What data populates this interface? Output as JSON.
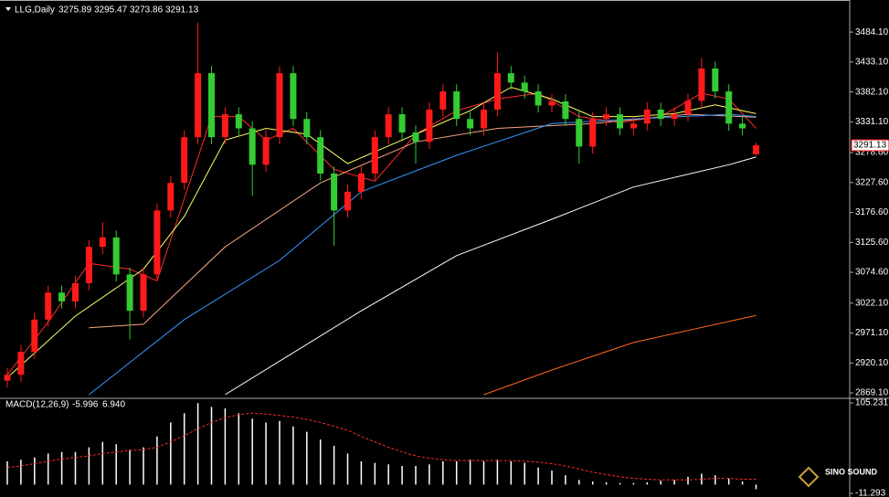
{
  "chart_data": [
    {
      "type": "candlestick",
      "title": "LLG,Daily",
      "open": [
        2890,
        2900,
        2939,
        2994,
        3040,
        3025,
        3056,
        3118,
        3134,
        3071,
        3009,
        3071,
        3180,
        3227,
        3305,
        3414,
        3305,
        3344,
        3320,
        3258,
        3305,
        3414,
        3336,
        3305,
        3243,
        3180,
        3212,
        3243,
        3305,
        3344,
        3313,
        3297,
        3352,
        3383,
        3336,
        3320,
        3352,
        3414,
        3398,
        3383,
        3359,
        3366,
        3336,
        3289,
        3336,
        3344,
        3320,
        3328,
        3352,
        3336,
        3344,
        3367,
        3422,
        3383,
        3328,
        3275.89
      ],
      "high": [
        2912,
        2951,
        3006,
        3052,
        3052,
        3068,
        3130,
        3160,
        3146,
        3083,
        3083,
        3192,
        3239,
        3317,
        3500,
        3426,
        3356,
        3356,
        3332,
        3317,
        3426,
        3426,
        3348,
        3317,
        3255,
        3224,
        3255,
        3317,
        3356,
        3356,
        3325,
        3364,
        3395,
        3395,
        3348,
        3364,
        3450,
        3426,
        3410,
        3395,
        3378,
        3378,
        3348,
        3348,
        3356,
        3356,
        3340,
        3364,
        3364,
        3356,
        3379,
        3440,
        3434,
        3395,
        3340,
        3295.47
      ],
      "low": [
        2878,
        2888,
        2927,
        2982,
        3013,
        3013,
        3044,
        3106,
        3059,
        2960,
        2997,
        3059,
        3168,
        3215,
        3293,
        3293,
        3293,
        3308,
        3205,
        3246,
        3293,
        3324,
        3293,
        3231,
        3120,
        3168,
        3200,
        3231,
        3293,
        3301,
        3260,
        3285,
        3340,
        3324,
        3308,
        3308,
        3340,
        3386,
        3371,
        3347,
        3347,
        3324,
        3260,
        3277,
        3324,
        3308,
        3308,
        3316,
        3324,
        3324,
        3332,
        3355,
        3371,
        3316,
        3308,
        3273.86
      ],
      "close": [
        2900,
        2939,
        2994,
        3040,
        3025,
        3056,
        3118,
        3134,
        3071,
        3009,
        3071,
        3180,
        3227,
        3305,
        3414,
        3305,
        3344,
        3320,
        3258,
        3305,
        3414,
        3336,
        3305,
        3243,
        3180,
        3212,
        3243,
        3305,
        3344,
        3313,
        3297,
        3352,
        3383,
        3336,
        3320,
        3352,
        3414,
        3398,
        3383,
        3359,
        3366,
        3336,
        3289,
        3336,
        3344,
        3320,
        3328,
        3352,
        3336,
        3344,
        3367,
        3422,
        3383,
        3328,
        3320,
        3291.13
      ],
      "up_color": "#ff1a1a",
      "down_color": "#33cc33",
      "series": [
        {
          "color": "#ff2a2a",
          "x": [
            0,
            3,
            6,
            9,
            11,
            13,
            15,
            17,
            19,
            21,
            24,
            27,
            30,
            33,
            36,
            39,
            42,
            45,
            48,
            51,
            53,
            55
          ],
          "values": [
            2900,
            2990,
            3090,
            3080,
            3060,
            3200,
            3340,
            3340,
            3300,
            3320,
            3250,
            3230,
            3310,
            3350,
            3370,
            3380,
            3340,
            3330,
            3340,
            3380,
            3370,
            3320
          ]
        },
        {
          "color": "#ffff66",
          "x": [
            0,
            5,
            10,
            13,
            16,
            19,
            22,
            25,
            28,
            31,
            34,
            37,
            40,
            43,
            46,
            49,
            52,
            55
          ],
          "values": [
            2895,
            3000,
            3080,
            3170,
            3300,
            3320,
            3310,
            3260,
            3290,
            3320,
            3350,
            3390,
            3370,
            3340,
            3340,
            3345,
            3360,
            3345
          ]
        },
        {
          "color": "#f4a582",
          "x": [
            6,
            10,
            16,
            23,
            30,
            36,
            43,
            50,
            55
          ],
          "values": [
            2980,
            2986,
            3118,
            3227,
            3297,
            3320,
            3328,
            3344,
            3339
          ]
        },
        {
          "color": "#3399ff",
          "x": [
            6,
            13,
            20,
            26,
            33,
            40,
            46,
            53,
            55
          ],
          "values": [
            2866,
            2994,
            3095,
            3212,
            3274,
            3328,
            3336,
            3344,
            3340
          ]
        },
        {
          "color": "#ffffff",
          "x": [
            16,
            26,
            33,
            40,
            46,
            53,
            55
          ],
          "values": [
            2866,
            3009,
            3103,
            3165,
            3220,
            3258,
            3271
          ]
        },
        {
          "color": "#ff6a1a",
          "x": [
            35,
            40,
            46,
            55
          ],
          "values": [
            2866,
            2908,
            2955,
            3001
          ]
        }
      ],
      "ylim": [
        2866,
        3531
      ],
      "yticks": [
        {
          "value": 2869.1,
          "label": "2869.10"
        },
        {
          "value": 2920.1,
          "label": "2920.10"
        },
        {
          "value": 2971.1,
          "label": "2971.10"
        },
        {
          "value": 3022.1,
          "label": "3022.10"
        },
        {
          "value": 3074.6,
          "label": "3074.60"
        },
        {
          "value": 3125.6,
          "label": "3125.60"
        },
        {
          "value": 3176.6,
          "label": "3176.60"
        },
        {
          "value": 3227.6,
          "label": "3227.60"
        },
        {
          "value": 3278.6,
          "label": "3278.60"
        },
        {
          "value": 3331.1,
          "label": "3331.10"
        },
        {
          "value": 3382.1,
          "label": "3382.10"
        },
        {
          "value": 3433.1,
          "label": "3433.10"
        },
        {
          "value": 3484.1,
          "label": "3484.10"
        }
      ]
    },
    {
      "type": "macd",
      "title": "MACD(12,26,9)",
      "histogram": {
        "color": "#ffffff",
        "values": [
          30,
          32,
          35,
          40,
          42,
          42,
          48,
          55,
          52,
          45,
          48,
          62,
          80,
          92,
          105,
          100,
          98,
          92,
          85,
          80,
          82,
          75,
          68,
          58,
          50,
          40,
          30,
          28,
          26,
          24,
          24,
          26,
          30,
          30,
          32,
          30,
          32,
          30,
          28,
          22,
          18,
          12,
          6,
          4,
          3,
          2,
          2,
          3,
          5,
          6,
          10,
          14,
          12,
          8,
          4,
          -5.996
        ]
      },
      "signal": {
        "color": "#ff2a2a",
        "values": [
          22,
          24,
          27,
          30,
          33,
          35,
          37,
          40,
          42,
          44,
          45,
          48,
          55,
          63,
          72,
          80,
          86,
          90,
          92,
          91,
          89,
          87,
          84,
          80,
          75,
          70,
          62,
          55,
          48,
          42,
          37,
          34,
          32,
          31,
          31,
          31,
          31,
          31,
          30,
          29,
          27,
          24,
          20,
          16,
          13,
          10,
          8,
          7,
          6,
          6,
          6,
          7,
          8,
          8,
          7,
          6.94
        ],
        "value_labels": [
          null,
          null,
          null,
          null,
          null,
          null,
          null,
          null,
          null,
          null,
          null,
          null,
          null,
          null,
          null,
          null,
          null,
          null,
          null,
          null,
          null,
          null,
          null,
          null,
          null,
          null,
          null,
          null,
          null,
          null,
          null,
          null,
          null,
          null,
          null,
          null,
          null,
          null,
          null,
          null,
          null,
          null,
          null,
          null,
          null,
          null,
          null,
          null,
          null,
          null,
          null,
          null,
          null,
          null,
          null,
          "6.940"
        ]
      },
      "ylim": [
        -11.293,
        105.231
      ],
      "yticks": [
        105.231,
        -11.293
      ]
    }
  ],
  "logo": {
    "text": "SINO SOUND"
  }
}
